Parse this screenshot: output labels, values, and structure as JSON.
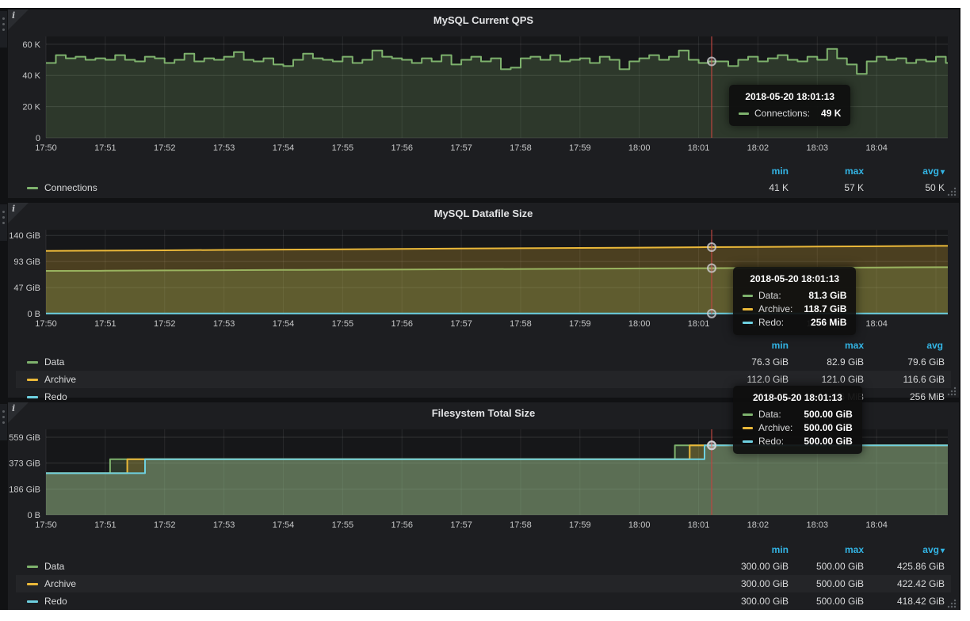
{
  "dashboard": {
    "bg": "#111214",
    "panel_bg": "#1d1e21",
    "accent_blue": "#33b5e5",
    "crosshair_color": "#bd4540",
    "series_colors": {
      "green": "#7eb26d",
      "orange": "#eab839",
      "blue": "#6ed0e0"
    }
  },
  "panels": [
    {
      "title": "MySQL Current QPS",
      "info_icon": "i",
      "legend": {
        "headers": {
          "min": "min",
          "max": "max",
          "avg": "avg",
          "avg_caret": "▾"
        },
        "rows": [
          {
            "name": "Connections",
            "color": "#7eb26d",
            "min": "41 K",
            "max": "57 K",
            "avg": "50 K"
          }
        ]
      },
      "tooltip": {
        "time": "2018-05-20 18:01:13",
        "rows": [
          {
            "name": "Connections:",
            "value": "49 K",
            "color": "#7eb26d"
          }
        ]
      },
      "chart_data": {
        "type": "line",
        "title": "MySQL Current QPS",
        "x_axis": "time",
        "x_tick_labels": [
          "17:50",
          "17:51",
          "17:52",
          "17:53",
          "17:54",
          "17:55",
          "17:56",
          "17:57",
          "17:58",
          "17:59",
          "18:00",
          "18:01",
          "18:02",
          "18:03",
          "18:04"
        ],
        "x_minutes_range": [
          0,
          15.2
        ],
        "x_step_min": 0.16667,
        "y_unit": "K",
        "y_max": 65,
        "y_ticks": [
          {
            "value": 0,
            "label": "0"
          },
          {
            "value": 20,
            "label": "20 K"
          },
          {
            "value": 40,
            "label": "40 K"
          },
          {
            "value": 60,
            "label": "60 K"
          }
        ],
        "legend_position": "bottom table min/max/avg",
        "grid": true,
        "crosshair": {
          "time": "2018-05-20 18:01:13",
          "x_min": 11.22,
          "values": {
            "Connections": "49 K"
          }
        },
        "series": [
          {
            "name": "Connections",
            "color": "#7eb26d",
            "step": true,
            "fill_opacity": 0.22,
            "values": [
              48,
              53,
              51,
              52,
              50,
              51,
              50,
              53,
              50,
              49,
              52,
              51,
              48,
              50,
              54,
              49,
              51,
              50,
              52,
              55,
              50,
              49,
              51,
              47,
              46,
              50,
              54,
              51,
              50,
              49,
              52,
              48,
              50,
              56,
              52,
              51,
              50,
              48,
              51,
              49,
              53,
              47,
              50,
              52,
              49,
              51,
              44,
              45,
              51,
              52,
              50,
              53,
              49,
              50,
              51,
              48,
              52,
              50,
              44,
              49,
              51,
              53,
              50,
              52,
              56,
              50,
              48,
              49,
              49,
              46,
              50,
              52,
              49,
              51,
              53,
              50,
              49,
              52,
              50,
              57,
              51,
              47,
              41,
              49,
              52,
              50,
              51,
              48,
              50,
              49,
              52,
              48
            ],
            "stats": {
              "min": "41 K",
              "max": "57 K",
              "avg": "50 K"
            }
          }
        ]
      }
    },
    {
      "title": "MySQL Datafile Size",
      "info_icon": "i",
      "legend": {
        "headers": {
          "min": "min",
          "max": "max",
          "avg": "avg",
          "avg_caret": ""
        },
        "rows": [
          {
            "name": "Data",
            "color": "#7eb26d",
            "min": "76.3 GiB",
            "max": "82.9 GiB",
            "avg": "79.6 GiB"
          },
          {
            "name": "Archive",
            "color": "#eab839",
            "min": "112.0 GiB",
            "max": "121.0 GiB",
            "avg": "116.6 GiB"
          },
          {
            "name": "Redo",
            "color": "#6ed0e0",
            "min": "256 MiB",
            "max": "256 MiB",
            "avg": "256 MiB"
          }
        ]
      },
      "tooltip": {
        "time": "2018-05-20 18:01:13",
        "rows": [
          {
            "name": "Data:",
            "value": "81.3 GiB",
            "color": "#7eb26d"
          },
          {
            "name": "Archive:",
            "value": "118.7 GiB",
            "color": "#eab839"
          },
          {
            "name": "Redo:",
            "value": "256 MiB",
            "color": "#6ed0e0"
          }
        ]
      },
      "chart_data": {
        "type": "line",
        "title": "MySQL Datafile Size",
        "x_axis": "time",
        "x_tick_labels": [
          "17:50",
          "17:51",
          "17:52",
          "17:53",
          "17:54",
          "17:55",
          "17:56",
          "17:57",
          "17:58",
          "17:59",
          "18:00",
          "18:01",
          "18:02",
          "18:03",
          "18:04"
        ],
        "x_minutes_range": [
          0,
          15.2
        ],
        "y_unit": "GiB",
        "y_max": 149.9,
        "y_ticks": [
          {
            "value": 0,
            "label": "0 B"
          },
          {
            "value": 46.6,
            "label": "47 GiB"
          },
          {
            "value": 93.1,
            "label": "93 GiB"
          },
          {
            "value": 139.7,
            "label": "140 GiB"
          }
        ],
        "legend_position": "bottom table min/max/avg",
        "grid": true,
        "crosshair": {
          "time": "2018-05-20 18:01:13",
          "x_min": 11.22,
          "values": {
            "Data": "81.3 GiB",
            "Archive": "118.7 GiB",
            "Redo": "256 MiB"
          }
        },
        "series": [
          {
            "name": "Data",
            "color": "#7eb26d",
            "step": false,
            "fill_opacity": 0.25,
            "points": [
              [
                0,
                76.3
              ],
              [
                1,
                76.7
              ],
              [
                2,
                77.2
              ],
              [
                3,
                77.6
              ],
              [
                4,
                78.1
              ],
              [
                5,
                78.5
              ],
              [
                6,
                78.9
              ],
              [
                7,
                79.4
              ],
              [
                8,
                79.8
              ],
              [
                9,
                80.3
              ],
              [
                10,
                80.7
              ],
              [
                11,
                81.2
              ],
              [
                12,
                81.6
              ],
              [
                13,
                82.0
              ],
              [
                14,
                82.5
              ],
              [
                15,
                82.9
              ],
              [
                15.2,
                82.9
              ]
            ],
            "stats": {
              "min": "76.3 GiB",
              "max": "82.9 GiB",
              "avg": "79.6 GiB"
            }
          },
          {
            "name": "Archive",
            "color": "#eab839",
            "step": false,
            "fill_opacity": 0.25,
            "points": [
              [
                0,
                112.0
              ],
              [
                1,
                112.6
              ],
              [
                2,
                113.2
              ],
              [
                3,
                113.8
              ],
              [
                4,
                114.4
              ],
              [
                5,
                115.0
              ],
              [
                6,
                115.6
              ],
              [
                7,
                116.2
              ],
              [
                8,
                116.8
              ],
              [
                9,
                117.4
              ],
              [
                10,
                118.0
              ],
              [
                11,
                118.6
              ],
              [
                12,
                119.2
              ],
              [
                13,
                119.8
              ],
              [
                14,
                120.4
              ],
              [
                15,
                121.0
              ],
              [
                15.2,
                121.0
              ]
            ],
            "stats": {
              "min": "112.0 GiB",
              "max": "121.0 GiB",
              "avg": "116.6 GiB"
            }
          },
          {
            "name": "Redo",
            "color": "#6ed0e0",
            "step": false,
            "fill_opacity": 0.25,
            "points": [
              [
                0,
                0.25
              ],
              [
                15.2,
                0.25
              ]
            ],
            "stats": {
              "min": "256 MiB",
              "max": "256 MiB",
              "avg": "256 MiB"
            }
          }
        ]
      }
    },
    {
      "title": "Filesystem Total Size",
      "info_icon": "i",
      "legend": {
        "headers": {
          "min": "min",
          "max": "max",
          "avg": "avg",
          "avg_caret": "▾"
        },
        "rows": [
          {
            "name": "Data",
            "color": "#7eb26d",
            "min": "300.00 GiB",
            "max": "500.00 GiB",
            "avg": "425.86 GiB"
          },
          {
            "name": "Archive",
            "color": "#eab839",
            "min": "300.00 GiB",
            "max": "500.00 GiB",
            "avg": "422.42 GiB"
          },
          {
            "name": "Redo",
            "color": "#6ed0e0",
            "min": "300.00 GiB",
            "max": "500.00 GiB",
            "avg": "418.42 GiB"
          }
        ]
      },
      "tooltip": {
        "time": "2018-05-20 18:01:13",
        "rows": [
          {
            "name": "Data:",
            "value": "500.00 GiB",
            "color": "#7eb26d"
          },
          {
            "name": "Archive:",
            "value": "500.00 GiB",
            "color": "#eab839"
          },
          {
            "name": "Redo:",
            "value": "500.00 GiB",
            "color": "#6ed0e0"
          }
        ]
      },
      "chart_data": {
        "type": "line",
        "title": "Filesystem Total Size",
        "x_axis": "time",
        "x_tick_labels": [
          "17:50",
          "17:51",
          "17:52",
          "17:53",
          "17:54",
          "17:55",
          "17:56",
          "17:57",
          "17:58",
          "17:59",
          "18:00",
          "18:01",
          "18:02",
          "18:03",
          "18:04"
        ],
        "x_minutes_range": [
          0,
          15.2
        ],
        "y_unit": "GiB",
        "y_max": 615.8,
        "y_ticks": [
          {
            "value": 0,
            "label": "0 B"
          },
          {
            "value": 186.3,
            "label": "186 GiB"
          },
          {
            "value": 372.5,
            "label": "373 GiB"
          },
          {
            "value": 558.8,
            "label": "559 GiB"
          }
        ],
        "legend_position": "bottom table min/max/avg",
        "grid": true,
        "crosshair": {
          "time": "2018-05-20 18:01:13",
          "x_min": 11.22,
          "values": {
            "Data": "500.00 GiB",
            "Archive": "500.00 GiB",
            "Redo": "500.00 GiB"
          }
        },
        "series": [
          {
            "name": "Data",
            "color": "#7eb26d",
            "step": false,
            "fill_opacity": 0.22,
            "points": [
              [
                0,
                300
              ],
              [
                1.08,
                300
              ],
              [
                1.08,
                400
              ],
              [
                10.6,
                400
              ],
              [
                10.6,
                500
              ],
              [
                15.2,
                500
              ]
            ],
            "stats": {
              "min": "300.00 GiB",
              "max": "500.00 GiB",
              "avg": "425.86 GiB"
            }
          },
          {
            "name": "Archive",
            "color": "#eab839",
            "step": false,
            "fill_opacity": 0.22,
            "points": [
              [
                0,
                300
              ],
              [
                1.37,
                300
              ],
              [
                1.37,
                400
              ],
              [
                10.85,
                400
              ],
              [
                10.85,
                500
              ],
              [
                15.2,
                500
              ]
            ],
            "stats": {
              "min": "300.00 GiB",
              "max": "500.00 GiB",
              "avg": "422.42 GiB"
            }
          },
          {
            "name": "Redo",
            "color": "#6ed0e0",
            "step": false,
            "fill_opacity": 0.22,
            "points": [
              [
                0,
                300
              ],
              [
                1.67,
                300
              ],
              [
                1.67,
                400
              ],
              [
                11.1,
                400
              ],
              [
                11.1,
                500
              ],
              [
                15.2,
                500
              ]
            ],
            "stats": {
              "min": "300.00 GiB",
              "max": "500.00 GiB",
              "avg": "418.42 GiB"
            }
          }
        ]
      }
    }
  ]
}
